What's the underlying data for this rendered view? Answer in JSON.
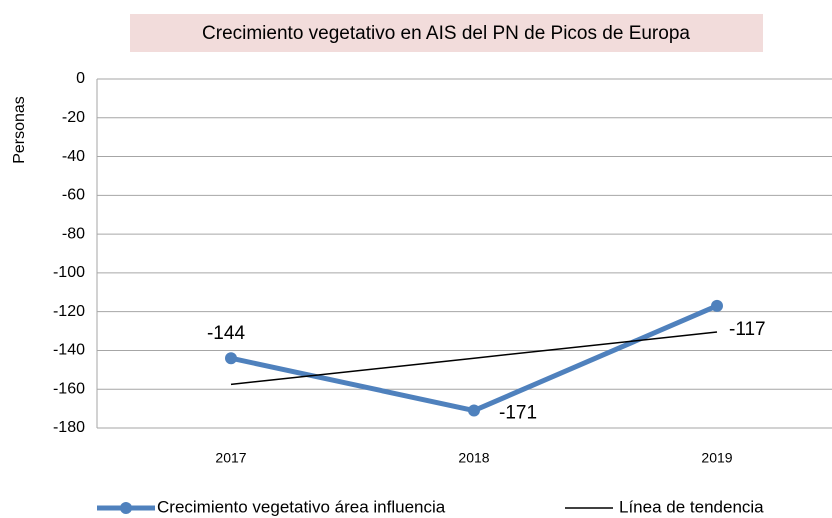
{
  "chart_data": {
    "type": "line",
    "title": "Crecimiento vegetativo en AIS del PN de Picos de Europa",
    "y_label": "Personas",
    "categories": [
      "2017",
      "2018",
      "2019"
    ],
    "series": [
      {
        "name": "Crecimiento vegetativo área influencia",
        "color": "#4f81bd",
        "values": [
          -144,
          -171,
          -117
        ]
      },
      {
        "name": "Línea de tendencia",
        "color": "#000000",
        "values": [
          -157.5,
          -144,
          -130.5
        ]
      }
    ],
    "ylim": [
      -180,
      0
    ],
    "yticks": [
      0,
      -20,
      -40,
      -60,
      -80,
      -100,
      -120,
      -140,
      -160,
      -180
    ],
    "grid": true
  }
}
